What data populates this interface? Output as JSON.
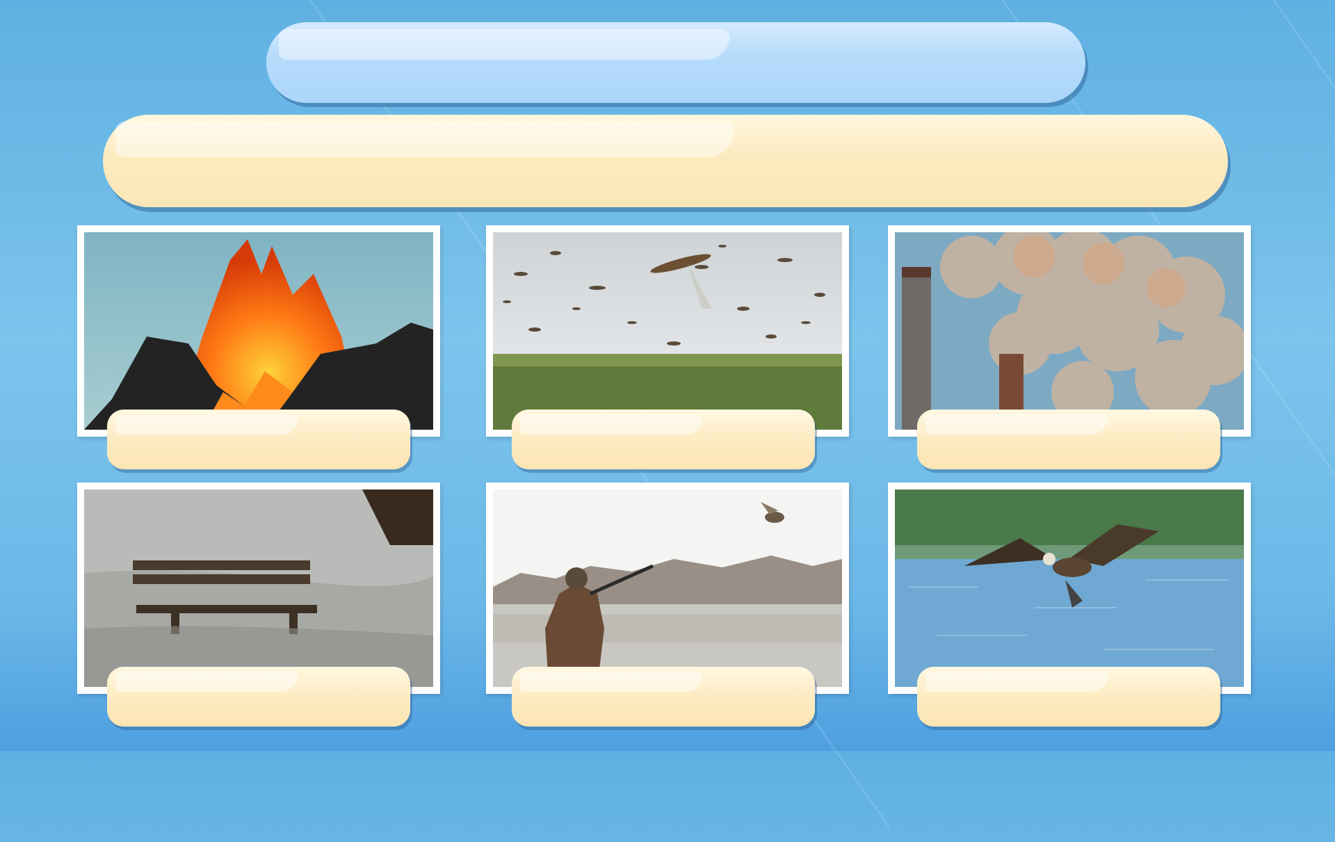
{
  "slide": {
    "title": "",
    "question": "",
    "images": [
      {
        "icon": "volcano-eruption-image",
        "caption": ""
      },
      {
        "icon": "locust-swarm-image",
        "caption": ""
      },
      {
        "icon": "factory-smoke-image",
        "caption": ""
      },
      {
        "icon": "flooded-bench-image",
        "caption": ""
      },
      {
        "icon": "duck-hunter-image",
        "caption": ""
      },
      {
        "icon": "eagle-fish-image",
        "caption": ""
      }
    ]
  }
}
